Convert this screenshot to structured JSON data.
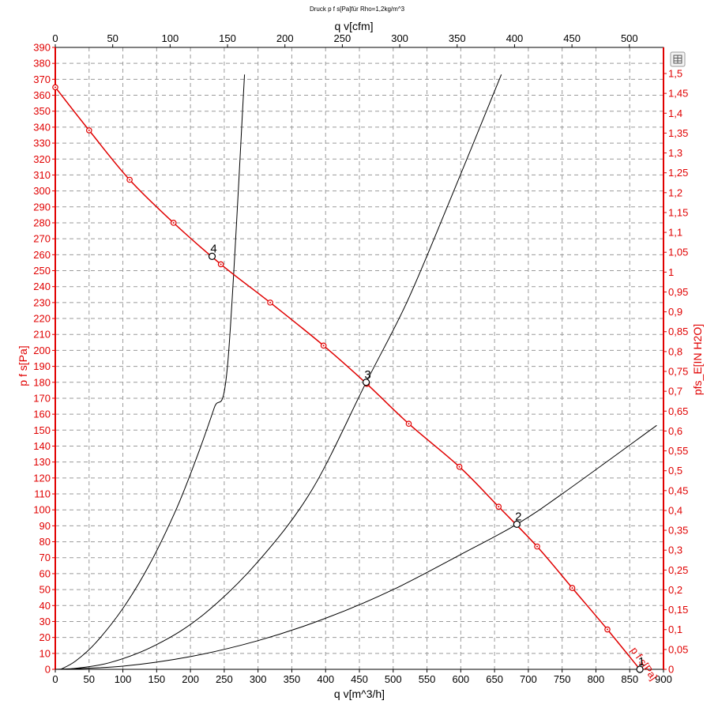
{
  "chart_data": {
    "type": "line",
    "title": "Druck p f s[Pa]für Rho=1,2kg/m^3",
    "xlabel": "q v[m^3/h]",
    "x2label": "q v[cfm]",
    "ylabel": "p f s[Pa]",
    "y2label": "pfs_E[IN H2O]",
    "xlim": [
      0,
      900
    ],
    "ylim": [
      0,
      390
    ],
    "x_ticks": [
      "0",
      "50",
      "100",
      "150",
      "200",
      "250",
      "300",
      "350",
      "400",
      "450",
      "500",
      "550",
      "600",
      "650",
      "700",
      "750",
      "800",
      "850",
      "900"
    ],
    "y_ticks": [
      "0",
      "10",
      "20",
      "30",
      "40",
      "50",
      "60",
      "70",
      "80",
      "90",
      "100",
      "110",
      "120",
      "130",
      "140",
      "150",
      "160",
      "170",
      "180",
      "190",
      "200",
      "210",
      "220",
      "230",
      "240",
      "250",
      "260",
      "270",
      "280",
      "290",
      "300",
      "310",
      "320",
      "330",
      "340",
      "350",
      "360",
      "370",
      "380",
      "390"
    ],
    "x2_ticks": [
      "0",
      "50",
      "100",
      "150",
      "200",
      "250",
      "300",
      "350",
      "400",
      "450",
      "500"
    ],
    "y2_ticks": [
      "0",
      "0,05",
      "0,1",
      "0,15",
      "0,2",
      "0,25",
      "0,3",
      "0,35",
      "0,4",
      "0,45",
      "0,5",
      "0,55",
      "0,6",
      "0,65",
      "0,7",
      "0,75",
      "0,8",
      "0,85",
      "0,9",
      "0,95",
      "1",
      "1,05",
      "1,1",
      "1,15",
      "1,2",
      "1,25",
      "1,3",
      "1,35",
      "1,4",
      "1,45",
      "1,5"
    ],
    "grid": true,
    "fan_curve": {
      "name": "p f s[Pa]",
      "color": "#e00000",
      "x": [
        0,
        50,
        110,
        175,
        245,
        318,
        397,
        461,
        523,
        598,
        656,
        713,
        765,
        817,
        865
      ],
      "y": [
        365,
        338,
        307,
        280,
        254,
        230,
        203,
        179,
        154,
        127,
        102,
        77,
        51,
        25,
        0
      ]
    },
    "system_curves": [
      {
        "label": "4",
        "color": "#000000",
        "x": [
          8,
          30,
          60,
          100,
          140,
          180,
          210,
          235,
          255,
          280
        ],
        "y": [
          0,
          5.2,
          16.7,
          38.2,
          66.2,
          101.4,
          133.7,
          163.8,
          191.2,
          373
        ]
      },
      {
        "label": "3",
        "color": "#000000",
        "x": [
          18,
          80,
          150,
          220,
          300,
          380,
          460,
          520,
          580,
          660
        ],
        "y": [
          0,
          4.1,
          15.5,
          34.6,
          67.6,
          112.7,
          180,
          230,
          290,
          373
        ]
      },
      {
        "label": "2",
        "color": "#000000",
        "x": [
          0,
          100,
          200,
          300,
          400,
          500,
          600,
          683,
          750,
          890
        ],
        "y": [
          0,
          2,
          8,
          18,
          32,
          50,
          72,
          91,
          110,
          153
        ]
      },
      {
        "label": "1",
        "color": "#000000",
        "x": [],
        "y": []
      }
    ],
    "operating_points": [
      {
        "label": "1",
        "x": 865,
        "y": 0
      },
      {
        "label": "2",
        "x": 683,
        "y": 91
      },
      {
        "label": "3",
        "x": 460,
        "y": 180
      },
      {
        "label": "4",
        "x": 232,
        "y": 259
      }
    ]
  }
}
